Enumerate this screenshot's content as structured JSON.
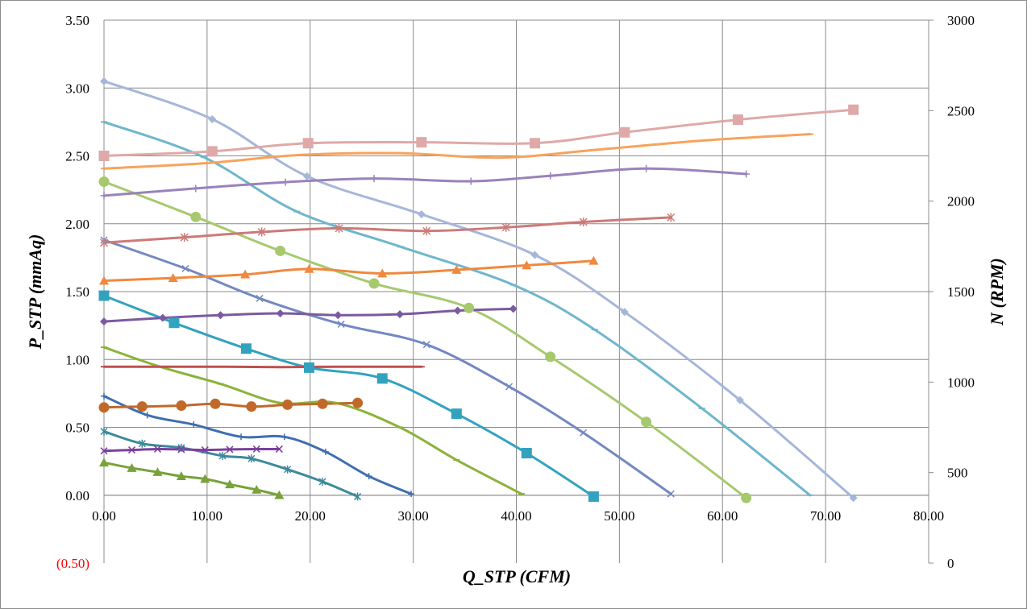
{
  "chart_data": {
    "type": "line",
    "xlabel": "Q_STP (CFM)",
    "ylabel": "P_STP (mmAq)",
    "y2label": "N (RPM)",
    "xlim": [
      0,
      80
    ],
    "ylim": [
      -0.5,
      3.5
    ],
    "y2lim": [
      0,
      3000
    ],
    "grid": true,
    "legend": "none",
    "x_ticks": [
      "0.00",
      "10.00",
      "20.00",
      "30.00",
      "40.00",
      "50.00",
      "60.00",
      "70.00",
      "80.00"
    ],
    "x_tick_values": [
      0,
      10,
      20,
      30,
      40,
      50,
      60,
      70,
      80
    ],
    "y_ticks": [
      "(0.50)",
      "0.00",
      "0.50",
      "1.00",
      "1.50",
      "2.00",
      "2.50",
      "3.00",
      "3.50"
    ],
    "y_tick_values": [
      -0.5,
      0,
      0.5,
      1,
      1.5,
      2,
      2.5,
      3,
      3.5
    ],
    "y_tick_colors": [
      "#ff0000",
      "#000000",
      "#000000",
      "#000000",
      "#000000",
      "#000000",
      "#000000",
      "#000000",
      "#000000"
    ],
    "y2_ticks": [
      "0",
      "500",
      "1000",
      "1500",
      "2000",
      "2500",
      "3000"
    ],
    "y2_tick_values": [
      0,
      500,
      1000,
      1500,
      2000,
      2500,
      3000
    ],
    "series": [
      {
        "axis": "left",
        "color": "#a5b6d9",
        "marker": "diamond",
        "size": 10,
        "points": [
          [
            0,
            3.05
          ],
          [
            10.5,
            2.77
          ],
          [
            19.7,
            2.35
          ],
          [
            30.8,
            2.07
          ],
          [
            41.8,
            1.77
          ],
          [
            50.5,
            1.35
          ],
          [
            61.7,
            0.7
          ],
          [
            72.7,
            -0.02
          ]
        ]
      },
      {
        "axis": "left",
        "color": "#6fb6cc",
        "marker": "dash",
        "size": 8,
        "points": [
          [
            0,
            2.75
          ],
          [
            9.7,
            2.49
          ],
          [
            18.7,
            2.09
          ],
          [
            28.8,
            1.83
          ],
          [
            39.7,
            1.55
          ],
          [
            47.6,
            1.22
          ],
          [
            58.0,
            0.64
          ],
          [
            68.5,
            0.0
          ]
        ]
      },
      {
        "axis": "left",
        "color": "#a7c96e",
        "marker": "circle",
        "size": 13,
        "points": [
          [
            0,
            2.31
          ],
          [
            8.9,
            2.05
          ],
          [
            17.1,
            1.8
          ],
          [
            26.2,
            1.56
          ],
          [
            35.4,
            1.38
          ],
          [
            43.3,
            1.02
          ],
          [
            52.6,
            0.54
          ],
          [
            62.3,
            -0.02
          ]
        ]
      },
      {
        "axis": "left",
        "color": "#7488c2",
        "marker": "x",
        "size": 8,
        "points": [
          [
            0,
            1.88
          ],
          [
            7.9,
            1.67
          ],
          [
            15.1,
            1.45
          ],
          [
            23.0,
            1.26
          ],
          [
            31.3,
            1.11
          ],
          [
            39.3,
            0.8
          ],
          [
            46.5,
            0.46
          ],
          [
            55.0,
            0.01
          ]
        ]
      },
      {
        "axis": "left",
        "color": "#32a2bf",
        "marker": "square",
        "size": 13,
        "points": [
          [
            0,
            1.47
          ],
          [
            6.8,
            1.27
          ],
          [
            13.8,
            1.08
          ],
          [
            19.9,
            0.94
          ],
          [
            27.0,
            0.86
          ],
          [
            34.2,
            0.6
          ],
          [
            41.0,
            0.31
          ],
          [
            47.5,
            -0.01
          ]
        ]
      },
      {
        "axis": "left",
        "color": "#8cb23a",
        "marker": "dash",
        "size": 8,
        "points": [
          [
            0,
            1.09
          ],
          [
            5.3,
            0.95
          ],
          [
            11.3,
            0.82
          ],
          [
            17.1,
            0.68
          ],
          [
            22.5,
            0.68
          ],
          [
            28.7,
            0.5
          ],
          [
            34.2,
            0.26
          ],
          [
            40.5,
            0.01
          ]
        ]
      },
      {
        "axis": "left",
        "color": "#3f6eb0",
        "marker": "plus",
        "size": 8,
        "points": [
          [
            0,
            0.73
          ],
          [
            4.2,
            0.59
          ],
          [
            8.7,
            0.52
          ],
          [
            13.3,
            0.43
          ],
          [
            17.5,
            0.43
          ],
          [
            21.5,
            0.32
          ],
          [
            25.7,
            0.14
          ],
          [
            29.8,
            0.01
          ]
        ]
      },
      {
        "axis": "left",
        "color": "#3b8a9c",
        "marker": "star",
        "size": 8,
        "points": [
          [
            0,
            0.47
          ],
          [
            3.7,
            0.38
          ],
          [
            7.5,
            0.35
          ],
          [
            11.5,
            0.29
          ],
          [
            14.3,
            0.27
          ],
          [
            17.8,
            0.19
          ],
          [
            21.2,
            0.1
          ],
          [
            24.6,
            -0.01
          ]
        ]
      },
      {
        "axis": "left",
        "color": "#78a23a",
        "marker": "triangle",
        "size": 12,
        "points": [
          [
            0,
            0.24
          ],
          [
            2.7,
            0.2
          ],
          [
            5.2,
            0.17
          ],
          [
            7.5,
            0.14
          ],
          [
            9.8,
            0.12
          ],
          [
            12.2,
            0.08
          ],
          [
            14.8,
            0.04
          ],
          [
            17.0,
            0.0
          ]
        ]
      },
      {
        "axis": "right",
        "color": "#dea9a8",
        "marker": "square",
        "size": 13,
        "points": [
          [
            0,
            2250
          ],
          [
            10.5,
            2275
          ],
          [
            19.8,
            2320
          ],
          [
            30.8,
            2325
          ],
          [
            41.8,
            2320
          ],
          [
            50.5,
            2380
          ],
          [
            61.5,
            2450
          ],
          [
            72.7,
            2505
          ]
        ]
      },
      {
        "axis": "right",
        "color": "#f7a35c",
        "marker": "dash",
        "size": 8,
        "points": [
          [
            0,
            2180
          ],
          [
            10.0,
            2210
          ],
          [
            19.0,
            2255
          ],
          [
            28.6,
            2265
          ],
          [
            38.5,
            2240
          ],
          [
            48.0,
            2285
          ],
          [
            58.2,
            2335
          ],
          [
            68.5,
            2370
          ]
        ]
      },
      {
        "axis": "right",
        "color": "#9982bc",
        "marker": "plus",
        "size": 9,
        "points": [
          [
            0,
            2030
          ],
          [
            8.9,
            2070
          ],
          [
            17.6,
            2105
          ],
          [
            26.2,
            2125
          ],
          [
            35.6,
            2110
          ],
          [
            43.3,
            2140
          ],
          [
            52.6,
            2180
          ],
          [
            62.3,
            2150
          ]
        ]
      },
      {
        "axis": "right",
        "color": "#cc7a78",
        "marker": "star",
        "size": 9,
        "points": [
          [
            0,
            1770
          ],
          [
            7.8,
            1800
          ],
          [
            15.3,
            1830
          ],
          [
            22.8,
            1850
          ],
          [
            31.3,
            1835
          ],
          [
            39.0,
            1855
          ],
          [
            46.5,
            1885
          ],
          [
            55.0,
            1910
          ]
        ]
      },
      {
        "axis": "right",
        "color": "#f0883e",
        "marker": "triangle",
        "size": 12,
        "points": [
          [
            0,
            1560
          ],
          [
            6.7,
            1575
          ],
          [
            13.7,
            1595
          ],
          [
            19.9,
            1625
          ],
          [
            27.0,
            1600
          ],
          [
            34.2,
            1620
          ],
          [
            41.0,
            1645
          ],
          [
            47.5,
            1670
          ]
        ]
      },
      {
        "axis": "right",
        "color": "#7a5aa0",
        "marker": "diamond",
        "size": 10,
        "points": [
          [
            0,
            1335
          ],
          [
            5.7,
            1355
          ],
          [
            11.3,
            1370
          ],
          [
            17.1,
            1380
          ],
          [
            22.7,
            1370
          ],
          [
            28.7,
            1375
          ],
          [
            34.3,
            1395
          ],
          [
            39.7,
            1405
          ]
        ]
      },
      {
        "axis": "right",
        "color": "#c0504d",
        "marker": "dash",
        "size": 8,
        "points": [
          [
            0,
            1085
          ],
          [
            5.3,
            1085
          ],
          [
            11.3,
            1085
          ],
          [
            17.1,
            1083
          ],
          [
            22.5,
            1085
          ],
          [
            28.7,
            1085
          ],
          [
            30.8,
            1085
          ]
        ]
      },
      {
        "axis": "right",
        "color": "#c0692a",
        "marker": "circle",
        "size": 13,
        "points": [
          [
            0,
            860
          ],
          [
            3.7,
            865
          ],
          [
            7.5,
            870
          ],
          [
            10.8,
            880
          ],
          [
            14.3,
            865
          ],
          [
            17.8,
            875
          ],
          [
            21.2,
            880
          ],
          [
            24.6,
            885
          ]
        ]
      },
      {
        "axis": "right",
        "color": "#7b3f9e",
        "marker": "x",
        "size": 8,
        "points": [
          [
            0,
            620
          ],
          [
            2.7,
            625
          ],
          [
            5.2,
            630
          ],
          [
            7.5,
            628
          ],
          [
            9.8,
            625
          ],
          [
            12.2,
            628
          ],
          [
            14.8,
            630
          ],
          [
            17.0,
            630
          ]
        ]
      }
    ]
  }
}
